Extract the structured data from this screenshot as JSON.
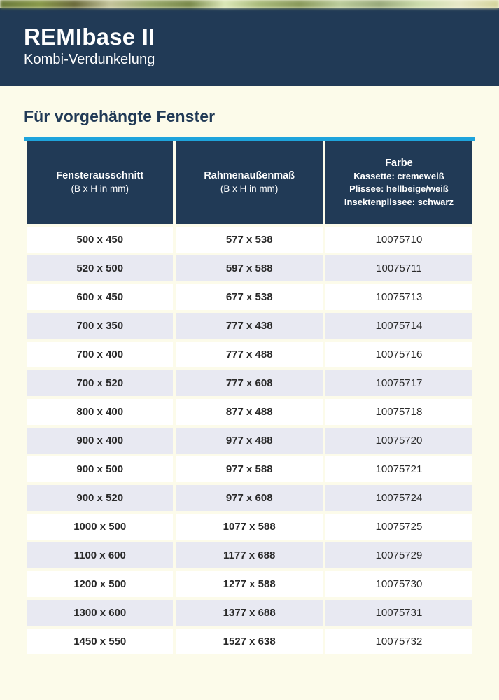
{
  "header": {
    "title": "REMIbase II",
    "subtitle": "Kombi-Verdunkelung"
  },
  "section": {
    "title": "Für vorgehängte Fenster"
  },
  "table": {
    "accent_color": "#1ea4dc",
    "header_bg": "#213a56",
    "row_odd_bg": "#ffffff",
    "row_even_bg": "#e8e9f2",
    "page_bg": "#fcfbea",
    "columns": [
      {
        "title": "Fensterausschnitt",
        "sub": "(B x H in mm)"
      },
      {
        "title": "Rahmenaußenmaß",
        "sub": "(B x H in mm)"
      },
      {
        "title": "Farbe",
        "lines": [
          "Kassette: cremeweiß",
          "Plissee: hellbeige/weiß",
          "Insektenplissee: schwarz"
        ]
      }
    ],
    "rows": [
      {
        "cut": "500 x 450",
        "frame": "577 x 538",
        "code": "10075710"
      },
      {
        "cut": "520 x 500",
        "frame": "597 x 588",
        "code": "10075711"
      },
      {
        "cut": "600 x 450",
        "frame": "677 x 538",
        "code": "10075713"
      },
      {
        "cut": "700 x 350",
        "frame": "777 x 438",
        "code": "10075714"
      },
      {
        "cut": "700 x 400",
        "frame": "777 x 488",
        "code": "10075716"
      },
      {
        "cut": "700 x 520",
        "frame": "777 x 608",
        "code": "10075717"
      },
      {
        "cut": "800 x 400",
        "frame": "877 x 488",
        "code": "10075718"
      },
      {
        "cut": "900 x 400",
        "frame": "977 x 488",
        "code": "10075720"
      },
      {
        "cut": "900 x 500",
        "frame": "977 x 588",
        "code": "10075721"
      },
      {
        "cut": "900 x 520",
        "frame": "977 x 608",
        "code": "10075724"
      },
      {
        "cut": "1000 x 500",
        "frame": "1077 x 588",
        "code": "10075725"
      },
      {
        "cut": "1100 x 600",
        "frame": "1177 x 688",
        "code": "10075729"
      },
      {
        "cut": "1200 x 500",
        "frame": "1277 x 588",
        "code": "10075730"
      },
      {
        "cut": "1300 x 600",
        "frame": "1377 x 688",
        "code": "10075731"
      },
      {
        "cut": "1450 x 550",
        "frame": "1527 x 638",
        "code": "10075732"
      }
    ]
  }
}
